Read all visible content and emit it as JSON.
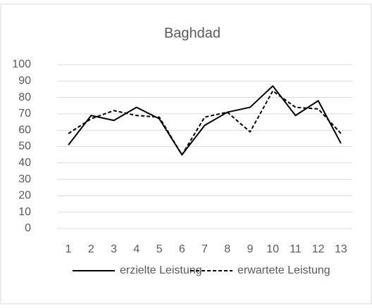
{
  "chart_data": {
    "type": "line",
    "title": "Baghdad",
    "categories": [
      "1",
      "2",
      "3",
      "4",
      "5",
      "6",
      "7",
      "8",
      "9",
      "10",
      "11",
      "12",
      "13"
    ],
    "series": [
      {
        "name": "erzielte Leistung",
        "color": "#000000",
        "dash": false,
        "values": [
          51,
          69,
          66,
          74,
          67,
          45,
          63,
          71,
          74,
          87,
          69,
          78,
          52
        ]
      },
      {
        "name": "erwartete Leistung",
        "color": "#000000",
        "dash": true,
        "values": [
          58,
          67,
          72,
          69,
          68,
          45,
          68,
          71,
          59,
          84,
          74,
          73,
          58
        ]
      }
    ],
    "ylim": [
      0,
      100
    ],
    "yticks": [
      0,
      10,
      20,
      30,
      40,
      50,
      60,
      70,
      80,
      90,
      100
    ],
    "grid": true,
    "legend": "bottom"
  }
}
